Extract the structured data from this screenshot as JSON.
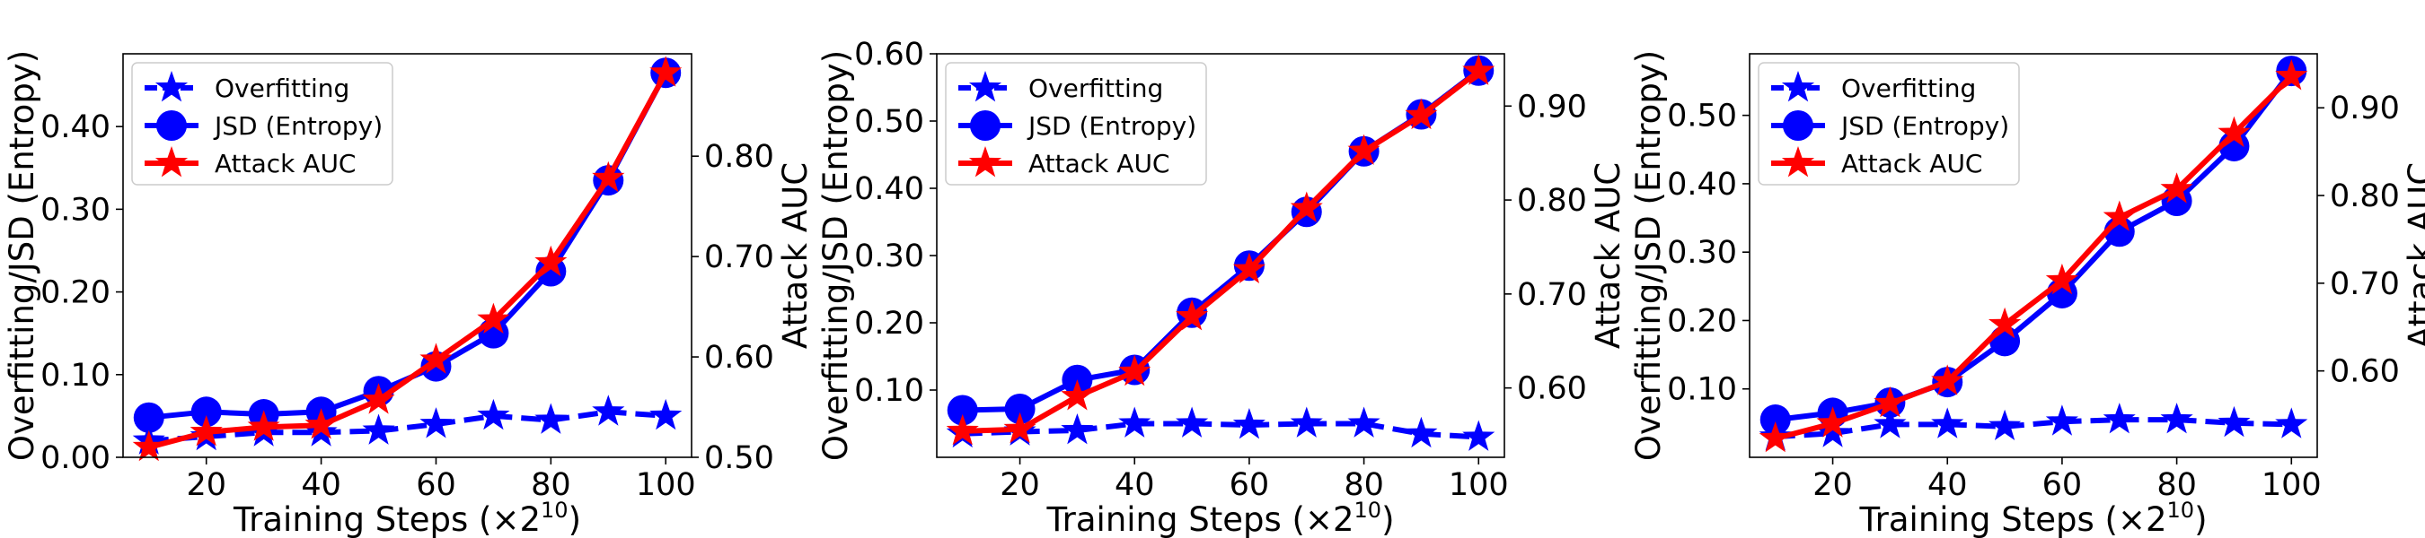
{
  "colors": {
    "overfitting": "#0000ff",
    "jsd": "#0000ff",
    "auc": "#ff0000",
    "frame": "#000000"
  },
  "legend": {
    "placement": "top-left",
    "items": [
      {
        "key": "overfitting",
        "label": "Overfitting",
        "marker": "star-icon",
        "dash": true
      },
      {
        "key": "jsd",
        "label": "JSD (Entropy)",
        "marker": "circle-icon",
        "dash": false
      },
      {
        "key": "auc",
        "label": "Attack AUC",
        "marker": "star-icon",
        "dash": false
      }
    ]
  },
  "chart_data": [
    {
      "type": "line",
      "xlabel_prefix": "Training Steps (×2",
      "xlabel_exp": "10",
      "xlabel_suffix": ")",
      "ylabel": "Overfitting/JSD (Entropy)",
      "y2label": "Attack AUC",
      "grid": false,
      "x": [
        10,
        20,
        30,
        40,
        50,
        60,
        70,
        80,
        90,
        100
      ],
      "xlim": [
        5.5,
        104.5
      ],
      "ylim": [
        0.0,
        0.488
      ],
      "y2lim": [
        0.5,
        0.902
      ],
      "xticks": [
        20,
        40,
        60,
        80,
        100
      ],
      "yticks": [
        "0.00",
        "0.10",
        "0.20",
        "0.30",
        "0.40"
      ],
      "y2ticks": [
        "0.50",
        "0.60",
        "0.70",
        "0.80"
      ],
      "series": [
        {
          "name": "Overfitting",
          "axis": "left",
          "values": [
            0.02,
            0.025,
            0.03,
            0.03,
            0.032,
            0.04,
            0.05,
            0.045,
            0.055,
            0.05
          ]
        },
        {
          "name": "JSD (Entropy)",
          "axis": "left",
          "values": [
            0.048,
            0.055,
            0.052,
            0.055,
            0.08,
            0.11,
            0.15,
            0.225,
            0.335,
            0.465
          ]
        },
        {
          "name": "Attack AUC",
          "axis": "right",
          "values": [
            0.51,
            0.525,
            0.53,
            0.532,
            0.557,
            0.597,
            0.637,
            0.694,
            0.778,
            0.883
          ]
        }
      ]
    },
    {
      "type": "line",
      "xlabel_prefix": "Training Steps (×2",
      "xlabel_exp": "10",
      "xlabel_suffix": ")",
      "ylabel": "Overfitting/JSD (Entropy)",
      "y2label": "Attack AUC",
      "grid": false,
      "x": [
        10,
        20,
        30,
        40,
        50,
        60,
        70,
        80,
        90,
        100
      ],
      "xlim": [
        5.5,
        104.5
      ],
      "ylim": [
        0.0,
        0.6
      ],
      "y2lim": [
        0.5262,
        0.9556
      ],
      "xticks": [
        20,
        40,
        60,
        80,
        100
      ],
      "yticks": [
        "0.10",
        "0.20",
        "0.30",
        "0.40",
        "0.50",
        "0.60"
      ],
      "y2ticks": [
        "0.60",
        "0.70",
        "0.80",
        "0.90"
      ],
      "series": [
        {
          "name": "Overfitting",
          "axis": "left",
          "values": [
            0.035,
            0.038,
            0.04,
            0.05,
            0.05,
            0.048,
            0.05,
            0.05,
            0.035,
            0.03
          ]
        },
        {
          "name": "JSD (Entropy)",
          "axis": "left",
          "values": [
            0.07,
            0.072,
            0.115,
            0.13,
            0.215,
            0.285,
            0.365,
            0.455,
            0.51,
            0.575
          ]
        },
        {
          "name": "Attack AUC",
          "axis": "right",
          "values": [
            0.554,
            0.556,
            0.591,
            0.617,
            0.676,
            0.726,
            0.791,
            0.852,
            0.89,
            0.937
          ]
        }
      ]
    },
    {
      "type": "line",
      "xlabel_prefix": "Training Steps (×2",
      "xlabel_exp": "10",
      "xlabel_suffix": ")",
      "ylabel": "Overfitting/JSD (Entropy)",
      "y2label": "Attack AUC",
      "grid": false,
      "x": [
        10,
        20,
        30,
        40,
        50,
        60,
        70,
        80,
        90,
        100
      ],
      "xlim": [
        5.5,
        104.5
      ],
      "ylim": [
        0.0,
        0.59
      ],
      "y2lim": [
        0.5015,
        0.9616
      ],
      "xticks": [
        20,
        40,
        60,
        80,
        100
      ],
      "yticks": [
        "0.10",
        "0.20",
        "0.30",
        "0.40",
        "0.50"
      ],
      "y2ticks": [
        "0.60",
        "0.70",
        "0.80",
        "0.90"
      ],
      "series": [
        {
          "name": "Overfitting",
          "axis": "left",
          "values": [
            0.03,
            0.035,
            0.048,
            0.048,
            0.045,
            0.052,
            0.055,
            0.055,
            0.05,
            0.048
          ]
        },
        {
          "name": "JSD (Entropy)",
          "axis": "left",
          "values": [
            0.055,
            0.065,
            0.08,
            0.11,
            0.17,
            0.24,
            0.33,
            0.375,
            0.455,
            0.565
          ]
        },
        {
          "name": "Attack AUC",
          "axis": "right",
          "values": [
            0.523,
            0.54,
            0.563,
            0.588,
            0.653,
            0.703,
            0.775,
            0.807,
            0.871,
            0.936
          ]
        }
      ]
    }
  ]
}
